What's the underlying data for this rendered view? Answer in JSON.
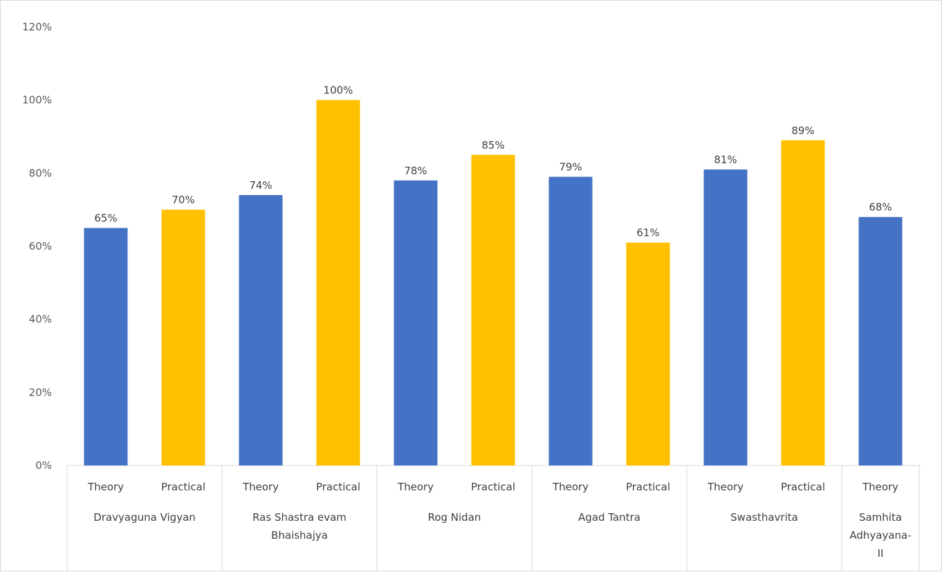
{
  "chart_data": {
    "type": "bar",
    "ylim": [
      0,
      120
    ],
    "yticks": [
      "0%",
      "20%",
      "40%",
      "60%",
      "80%",
      "100%",
      "120%"
    ],
    "ytick_values": [
      0,
      20,
      40,
      60,
      80,
      100,
      120
    ],
    "grid": false,
    "legend": "none",
    "colors": {
      "Theory": "#4472c4",
      "Practical": "#ffc000"
    },
    "groups": [
      {
        "name": [
          "Dravyaguna Vigyan"
        ],
        "bars": [
          {
            "label": "Theory",
            "value": 65,
            "text": "65%"
          },
          {
            "label": "Practical",
            "value": 70,
            "text": "70%"
          }
        ]
      },
      {
        "name": [
          "Ras Shastra evam",
          "Bhaishajya"
        ],
        "bars": [
          {
            "label": "Theory",
            "value": 74,
            "text": "74%"
          },
          {
            "label": "Practical",
            "value": 100,
            "text": "100%"
          }
        ]
      },
      {
        "name": [
          "Rog Nidan"
        ],
        "bars": [
          {
            "label": "Theory",
            "value": 78,
            "text": "78%"
          },
          {
            "label": "Practical",
            "value": 85,
            "text": "85%"
          }
        ]
      },
      {
        "name": [
          "Agad Tantra"
        ],
        "bars": [
          {
            "label": "Theory",
            "value": 79,
            "text": "79%"
          },
          {
            "label": "Practical",
            "value": 61,
            "text": "61%"
          }
        ]
      },
      {
        "name": [
          "Swasthavrita"
        ],
        "bars": [
          {
            "label": "Theory",
            "value": 81,
            "text": "81%"
          },
          {
            "label": "Practical",
            "value": 89,
            "text": "89%"
          }
        ]
      },
      {
        "name": [
          "Samhita",
          "Adhyayana-",
          "II"
        ],
        "bars": [
          {
            "label": "Theory",
            "value": 68,
            "text": "68%"
          }
        ]
      }
    ]
  }
}
